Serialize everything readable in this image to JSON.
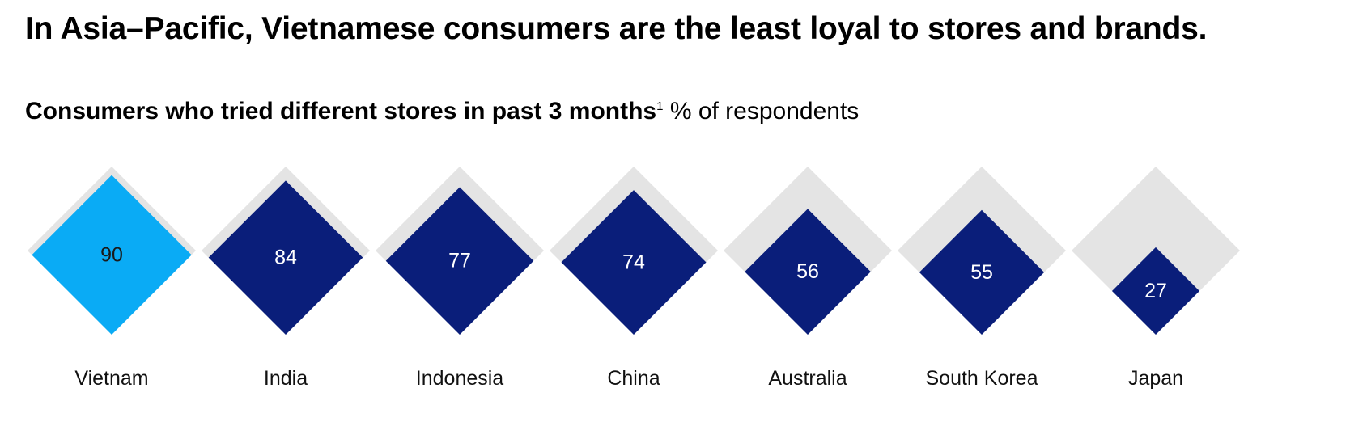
{
  "title": "In Asia–Pacific, Vietnamese consumers are the least loyal to stores and brands.",
  "subtitle": {
    "main": "Consumers who tried different stores in past 3 months",
    "footnote_marker": "1",
    "unit": "% of respondents"
  },
  "colors": {
    "highlight": "#0aabf5",
    "primary": "#0a1e7a",
    "background_diamond": "#e4e4e4",
    "highlight_text": "#1a1a1a",
    "primary_text": "#ffffff"
  },
  "chart_data": {
    "type": "bar",
    "shape": "diamond",
    "max_value": 100,
    "categories": [
      "Vietnam",
      "India",
      "Indonesia",
      "China",
      "Australia",
      "South Korea",
      "Japan"
    ],
    "values": [
      90,
      84,
      77,
      74,
      56,
      55,
      27
    ],
    "value_labels": [
      "90",
      "84",
      "77",
      "74",
      "56",
      "55",
      "27"
    ],
    "highlighted_category": "Vietnam",
    "legend": "none",
    "grid": false
  }
}
